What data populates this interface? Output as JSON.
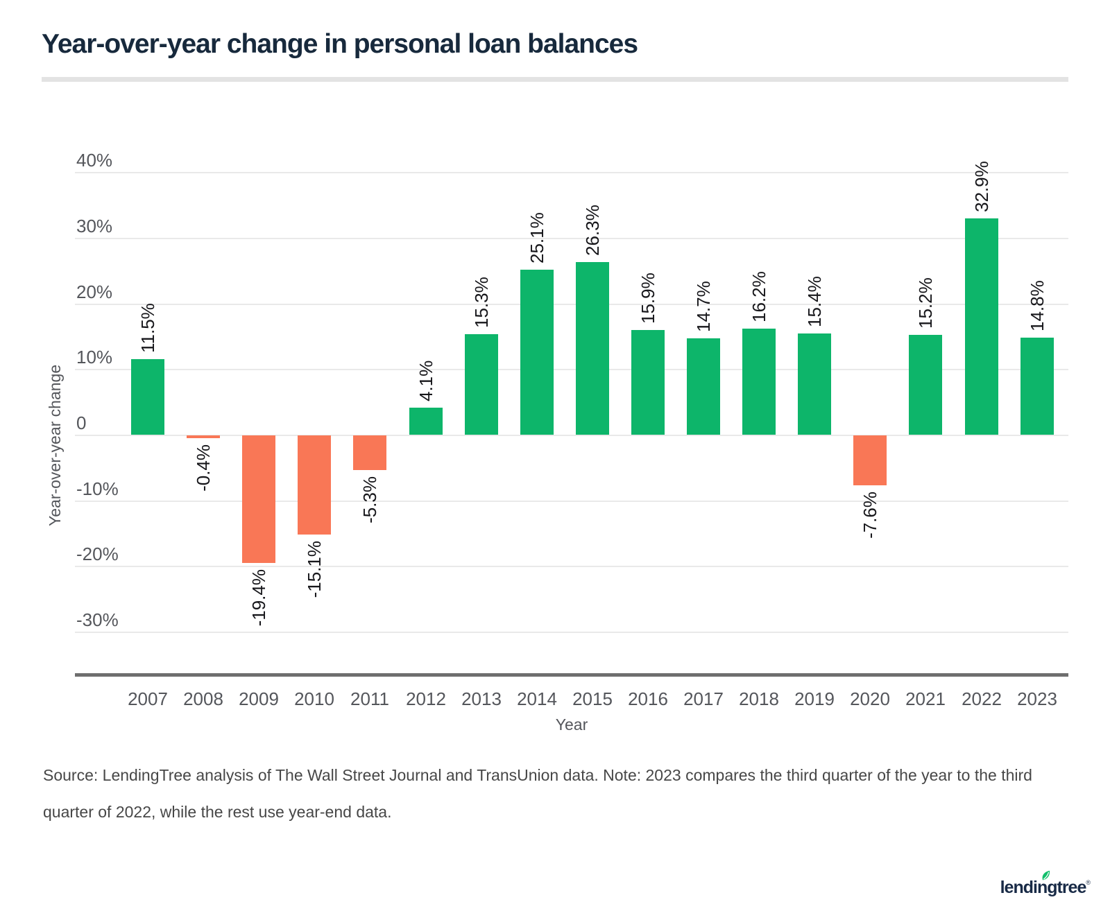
{
  "page": {
    "title": "Year-over-year change in personal loan balances",
    "source_note": "Source: LendingTree analysis of The Wall Street Journal and TransUnion data. Note: 2023 compares the third quarter of the year to the third quarter of 2022, while the rest use year-end data.",
    "logo": {
      "text": "lendingtree",
      "registered_mark": "®",
      "icon": "leaf-icon"
    }
  },
  "chart_data": {
    "type": "bar",
    "title": "Year-over-year change in personal loan balances",
    "categories": [
      "2007",
      "2008",
      "2009",
      "2010",
      "2011",
      "2012",
      "2013",
      "2014",
      "2015",
      "2016",
      "2017",
      "2018",
      "2019",
      "2020",
      "2021",
      "2022",
      "2023"
    ],
    "values": [
      11.5,
      -0.4,
      -19.4,
      -15.1,
      -5.3,
      4.1,
      15.3,
      25.1,
      26.3,
      15.9,
      14.7,
      16.2,
      15.4,
      -7.6,
      15.2,
      32.9,
      14.8
    ],
    "bar_labels": [
      "11.5%",
      "-0.4%",
      "-19.4%",
      "-15.1%",
      "-5.3%",
      "4.1%",
      "15.3%",
      "25.1%",
      "26.3%",
      "15.9%",
      "14.7%",
      "16.2%",
      "15.4%",
      "-7.6%",
      "15.2%",
      "32.9%",
      "14.8%"
    ],
    "xlabel": "Year",
    "ylabel": "Year-over-year change",
    "y_ticks": [
      {
        "label": "40%",
        "value": 40
      },
      {
        "label": "30%",
        "value": 30
      },
      {
        "label": "20%",
        "value": 20
      },
      {
        "label": "10%",
        "value": 10
      },
      {
        "label": "0",
        "value": 0
      },
      {
        "label": "-10%",
        "value": -10
      },
      {
        "label": "-20%",
        "value": -20
      },
      {
        "label": "-30%",
        "value": -30
      }
    ],
    "ylim": [
      -36.5,
      49
    ],
    "grid": true,
    "legend": false,
    "colors": {
      "positive_bar": "#0DB56A",
      "negative_bar": "#F97756",
      "title_navy": "#17293C",
      "leaf_green": "#12BF6B"
    }
  }
}
